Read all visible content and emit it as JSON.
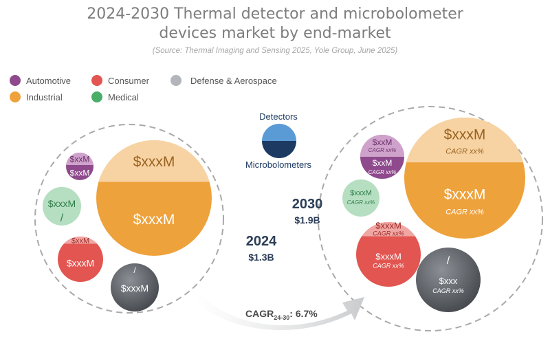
{
  "title_line1": "2024-2030 Thermal detector and microbolometer",
  "title_line2": "devices market by end-market",
  "source": "(Source: Thermal Imaging and Sensing 2025, Yole Group, June 2025)",
  "legend": [
    {
      "label": "Automotive",
      "color": "#8e4a8c"
    },
    {
      "label": "Consumer",
      "color": "#e25550"
    },
    {
      "label": "Defense & Aerospace",
      "color": "#b2b6ba"
    },
    {
      "label": "Industrial",
      "color": "#eea23c"
    },
    {
      "label": "Medical",
      "color": "#4aae68"
    }
  ],
  "key": {
    "top_label": "Detectors",
    "bottom_label": "Microbolometers",
    "top_color": "#5b9bd5",
    "bottom_color": "#1d3a63"
  },
  "chart_data": {
    "type": "bubble",
    "title": "2024-2030 Thermal detector and microbolometer devices market by end-market",
    "cagr_prefix": "CAGR",
    "cagr_sub": "24-30",
    "cagr_value": ": 6.7%",
    "years": [
      {
        "year": "2024",
        "total": "$1.3B",
        "bubbles": [
          {
            "segment": "Automotive",
            "top": "$xxM",
            "bottom": "$xxM",
            "top_share": 0.45
          },
          {
            "segment": "Industrial",
            "top": "$xxxM",
            "bottom": "$xxxM",
            "top_share": 0.36
          },
          {
            "segment": "Medical",
            "top": "$xxxM",
            "bottom": "/",
            "top_share": 0.5
          },
          {
            "segment": "Consumer",
            "top": "$xxM",
            "bottom": "$xxxM",
            "top_share": 0.16
          },
          {
            "segment": "Defense & Aerospace",
            "top": "/",
            "bottom": "$xxxM",
            "top_share": 0.02
          }
        ]
      },
      {
        "year": "2030",
        "total": "$1.9B",
        "bubbles": [
          {
            "segment": "Automotive",
            "top": "$xxM",
            "top_cagr": "CAGR xx%",
            "bottom": "$xxM",
            "bottom_cagr": "CAGR xx%",
            "top_share": 0.5
          },
          {
            "segment": "Industrial",
            "top": "$xxxM",
            "top_cagr": "CAGR xx%",
            "bottom": "$xxxM",
            "bottom_cagr": "CAGR xx%",
            "top_share": 0.37
          },
          {
            "segment": "Medical",
            "top": "$xxxM",
            "top_cagr": "CAGR xx%",
            "bottom": "",
            "bottom_cagr": "",
            "top_share": 1.0
          },
          {
            "segment": "Consumer",
            "top": "$xxxM",
            "top_cagr": "CAGR xx%",
            "bottom": "$xxxM",
            "bottom_cagr": "CAGR xx%",
            "top_share": 0.22
          },
          {
            "segment": "Defense & Aerospace",
            "top": "/",
            "top_cagr": "",
            "bottom": "$xxx",
            "bottom_cagr": "CAGR xx%",
            "top_share": 0.02
          }
        ]
      }
    ]
  }
}
